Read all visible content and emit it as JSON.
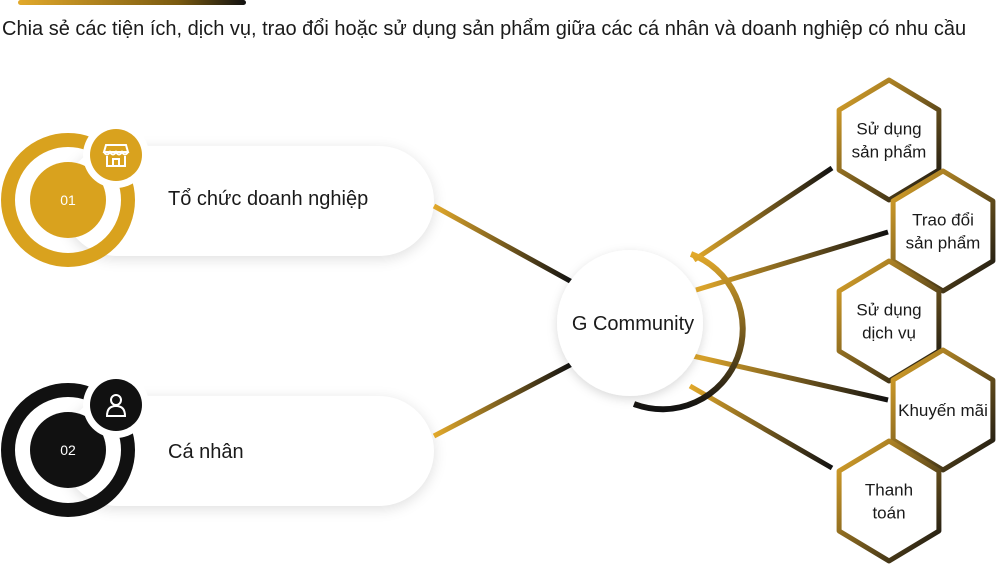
{
  "subtitle": "Chia sẻ các tiện ích, dịch vụ, trao đổi hoặc sử dụng sản phẩm giữa các cá nhân và doanh nghiệp có nhu cầu",
  "hub": {
    "label": "G Community"
  },
  "participants": [
    {
      "number": "01",
      "label": "Tổ chức doanh nghiệp",
      "icon": "store-icon",
      "color": "#d9a21e"
    },
    {
      "number": "02",
      "label": "Cá nhân",
      "icon": "person-icon",
      "color": "#111111"
    }
  ],
  "activities": [
    {
      "lines": [
        "Sử dụng",
        "sản phẩm"
      ]
    },
    {
      "lines": [
        "Trao đổi",
        "sản phẩm"
      ]
    },
    {
      "lines": [
        "Sử dụng",
        "dịch vụ"
      ]
    },
    {
      "lines": [
        "Khuyến mãi"
      ]
    },
    {
      "lines": [
        "Thanh",
        "toán"
      ]
    }
  ],
  "colors": {
    "gold": "#e2a92b",
    "dark": "#111111"
  }
}
